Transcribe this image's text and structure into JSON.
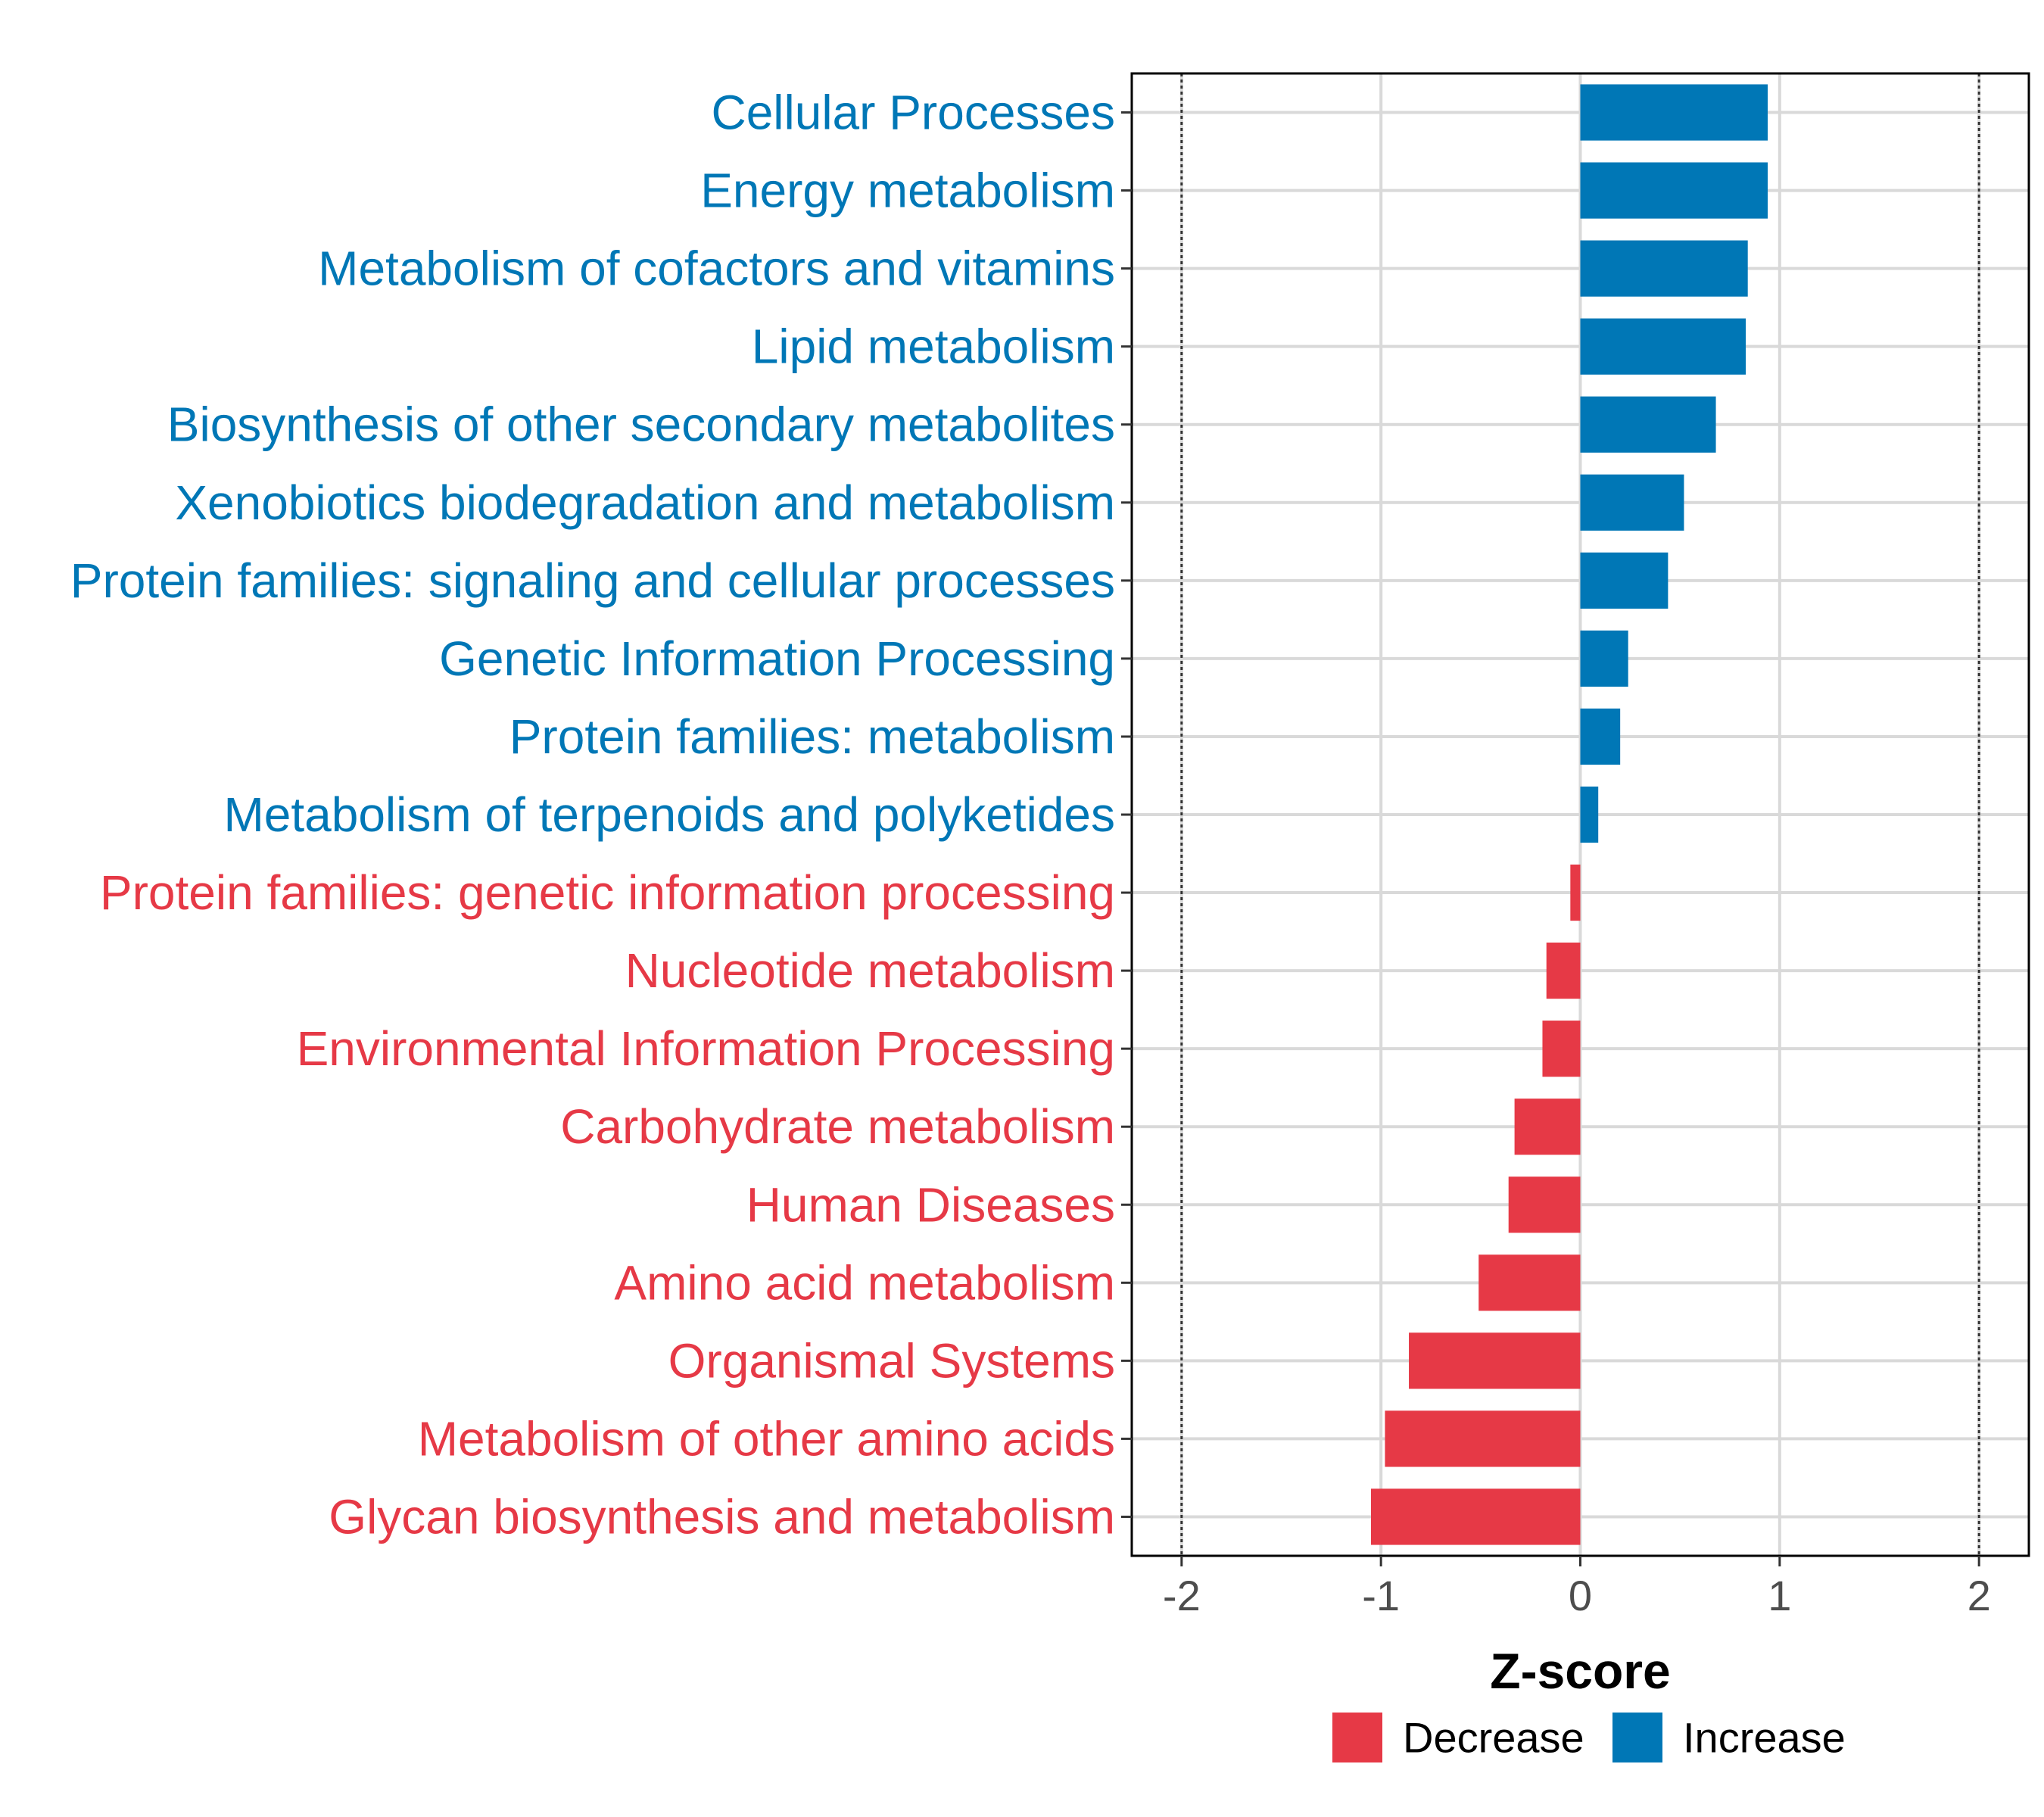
{
  "chart_data": {
    "type": "bar",
    "orientation": "horizontal",
    "xlabel": "Z-score",
    "ylabel": "",
    "xlim": [
      -2.25,
      2.25
    ],
    "xticks": [
      -2,
      -1,
      0,
      1,
      2
    ],
    "xtick_labels": [
      "-2",
      "-1",
      "0",
      "1",
      "2"
    ],
    "threshold_lines": [
      -2,
      2
    ],
    "grid": true,
    "colors": {
      "Decrease": "#e63946",
      "Increase": "#0077b6"
    },
    "categories": [
      "Cellular Processes",
      "Energy metabolism",
      "Metabolism of cofactors and vitamins",
      "Lipid metabolism",
      "Biosynthesis of other secondary metabolites",
      "Xenobiotics biodegradation and metabolism",
      "Protein families: signaling and cellular processes",
      "Genetic Information Processing",
      "Protein families: metabolism",
      "Metabolism of terpenoids and polyketides",
      "Protein families: genetic information processing",
      "Nucleotide metabolism",
      "Environmental Information Processing",
      "Carbohydrate metabolism",
      "Human Diseases",
      "Amino acid metabolism",
      "Organismal Systems",
      "Metabolism of other amino acids",
      "Glycan biosynthesis and metabolism"
    ],
    "values": [
      0.94,
      0.94,
      0.84,
      0.83,
      0.68,
      0.52,
      0.44,
      0.24,
      0.2,
      0.09,
      -0.05,
      -0.17,
      -0.19,
      -0.33,
      -0.36,
      -0.51,
      -0.86,
      -0.98,
      -1.05
    ],
    "groups": [
      "Increase",
      "Increase",
      "Increase",
      "Increase",
      "Increase",
      "Increase",
      "Increase",
      "Increase",
      "Increase",
      "Increase",
      "Decrease",
      "Decrease",
      "Decrease",
      "Decrease",
      "Decrease",
      "Decrease",
      "Decrease",
      "Decrease",
      "Decrease"
    ],
    "legend": {
      "position": "bottom",
      "entries": [
        {
          "label": "Decrease",
          "color": "#e63946"
        },
        {
          "label": "Increase",
          "color": "#0077b6"
        }
      ]
    }
  }
}
